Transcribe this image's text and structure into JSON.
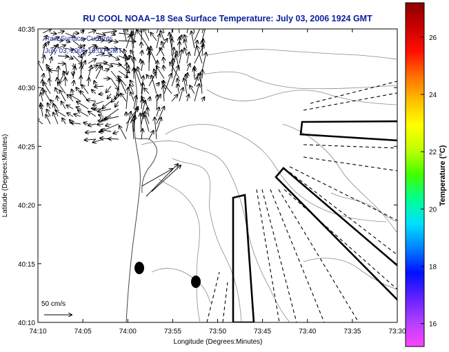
{
  "title": "RU COOL  NOAA−18  Sea Surface Temperature:  July 03, 2006 1924 GMT",
  "legend": {
    "line1": "Raw Surface Currents",
    "line2": "July 03, 2006 19:00 GMT"
  },
  "scale_label": "50 cm/s",
  "axes": {
    "xlabel": "Longitude (Degrees:Minutes)",
    "ylabel": "Latitude (Degrees:Minutes)",
    "x_ticks": [
      "74:10",
      "74:05",
      "74:00",
      "73:55",
      "73:50",
      "73:45",
      "73:40",
      "73:35",
      "73:30"
    ],
    "y_ticks": [
      "40:35",
      "40:30",
      "40:25",
      "40:20",
      "40:15",
      "40:10"
    ]
  },
  "colorbar": {
    "label": "Temperature (°C)",
    "ticks": [
      "26",
      "24",
      "22",
      "20",
      "18",
      "16"
    ],
    "range": [
      15.2,
      27.2
    ],
    "colors": [
      "#ff44ff",
      "#b040ff",
      "#6020ff",
      "#0010ff",
      "#0080ff",
      "#00e0ff",
      "#00ff90",
      "#40ff00",
      "#c0ff00",
      "#ffff00",
      "#ffc000",
      "#ff7000",
      "#ff1000",
      "#cc0000",
      "#8b0000"
    ]
  },
  "markers": [
    {
      "name": "station-dot-1"
    },
    {
      "name": "station-dot-2"
    }
  ]
}
